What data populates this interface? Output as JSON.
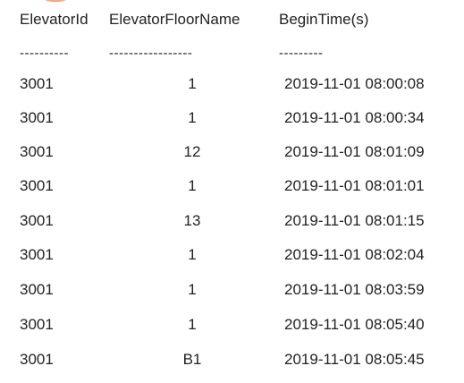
{
  "table": {
    "headers": {
      "id": "ElevatorId",
      "floor": "ElevatorFloorName",
      "time": "BeginTime(s)"
    },
    "separators": {
      "id": "----------",
      "floor": "-----------------",
      "time": "---------"
    },
    "rows": [
      {
        "id": "3001",
        "floor": "1",
        "time": "2019-11-01 08:00:08"
      },
      {
        "id": "3001",
        "floor": "1",
        "time": "2019-11-01 08:00:34"
      },
      {
        "id": "3001",
        "floor": "12",
        "time": "2019-11-01 08:01:09"
      },
      {
        "id": "3001",
        "floor": "1",
        "time": "2019-11-01 08:01:01"
      },
      {
        "id": "3001",
        "floor": "13",
        "time": "2019-11-01 08:01:15"
      },
      {
        "id": "3001",
        "floor": "1",
        "time": "2019-11-01 08:02:04"
      },
      {
        "id": "3001",
        "floor": "1",
        "time": "2019-11-01 08:03:59"
      },
      {
        "id": "3001",
        "floor": "1",
        "time": "2019-11-01 08:05:40"
      },
      {
        "id": "3001",
        "floor": "B1",
        "time": "2019-11-01 08:05:45"
      }
    ]
  },
  "colors": {
    "text": "#222222",
    "accent": "#f39a6b",
    "background": "#ffffff"
  }
}
